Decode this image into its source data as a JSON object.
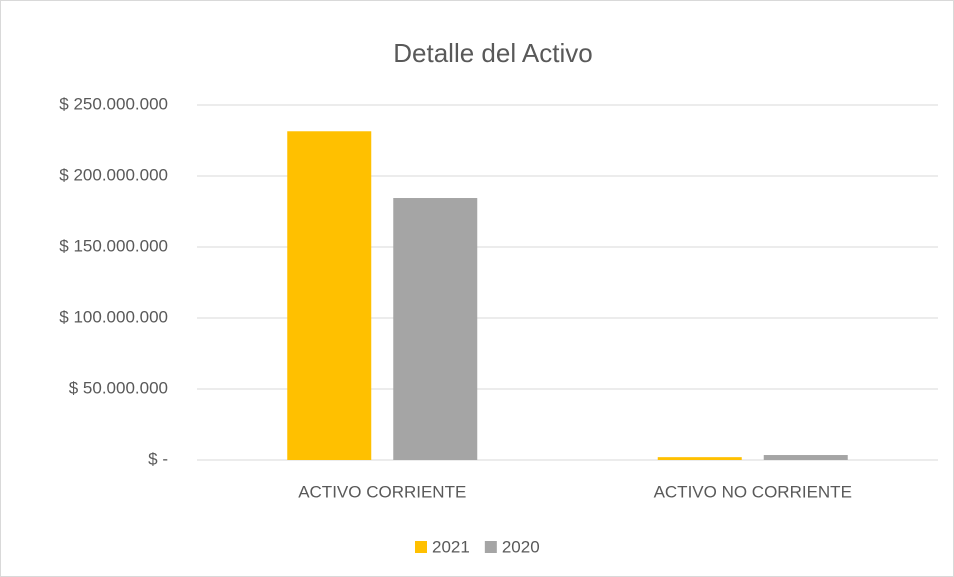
{
  "chart_data": {
    "type": "bar",
    "title": "Detalle del Activo",
    "categories": [
      "ACTIVO CORRIENTE",
      "ACTIVO NO CORRIENTE"
    ],
    "series": [
      {
        "name": "2021",
        "color": "#ffc000",
        "values": [
          231500000,
          2000000
        ]
      },
      {
        "name": "2020",
        "color": "#a5a5a5",
        "values": [
          184500000,
          3500000
        ]
      }
    ],
    "ylim": [
      0,
      250000000
    ],
    "yticks": [
      {
        "value": 0,
        "label": "$ -"
      },
      {
        "value": 50000000,
        "label": "$ 50.000.000"
      },
      {
        "value": 100000000,
        "label": "$ 100.000.000"
      },
      {
        "value": 150000000,
        "label": "$ 150.000.000"
      },
      {
        "value": 200000000,
        "label": "$ 200.000.000"
      },
      {
        "value": 250000000,
        "label": "$ 250.000.000"
      }
    ],
    "grid": true,
    "legend": "bottom"
  }
}
